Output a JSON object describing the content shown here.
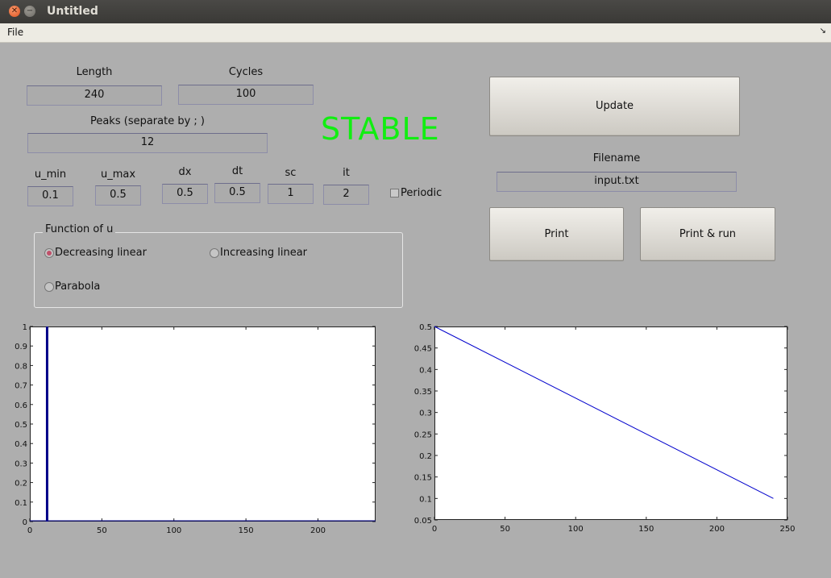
{
  "window": {
    "title": "Untitled",
    "close_glyph": "✕",
    "min_glyph": "−"
  },
  "menu": {
    "file": "File",
    "right_icon": "↘"
  },
  "labels": {
    "length": "Length",
    "cycles": "Cycles",
    "peaks": "Peaks (separate by ; )",
    "u_min": "u_min",
    "u_max": "u_max",
    "dx": "dx",
    "dt": "dt",
    "sc": "sc",
    "it": "it",
    "filename": "Filename"
  },
  "fields": {
    "length": "240",
    "cycles": "100",
    "peaks": "12",
    "u_min": "0.1",
    "u_max": "0.5",
    "dx": "0.5",
    "dt": "0.5",
    "sc": "1",
    "it": "2",
    "filename": "input.txt"
  },
  "status": {
    "text": "STABLE",
    "color": "#11ee11"
  },
  "buttons": {
    "update": "Update",
    "print": "Print",
    "print_run": "Print & run"
  },
  "periodic": {
    "label": "Periodic",
    "checked": false
  },
  "function_group": {
    "title": "Function of u",
    "options": [
      "Decreasing linear",
      "Increasing linear",
      "Parabola"
    ],
    "selected": "Decreasing linear"
  },
  "chart_data": [
    {
      "type": "line",
      "series": [
        {
          "x": [
            12,
            12
          ],
          "y": [
            0,
            1
          ],
          "color": "#000088"
        }
      ],
      "baseline": {
        "x": [
          0,
          240
        ],
        "y": [
          0,
          0
        ],
        "color": "#000088"
      },
      "xlim": [
        0,
        240
      ],
      "ylim": [
        0,
        1
      ],
      "xticks": [
        0,
        50,
        100,
        150,
        200
      ],
      "yticks": [
        0,
        0.1,
        0.2,
        0.3,
        0.4,
        0.5,
        0.6,
        0.7,
        0.8,
        0.9,
        1
      ],
      "xticklabels": [
        "0",
        "50",
        "100",
        "150",
        "200"
      ],
      "yticklabels": [
        "0",
        "0.1",
        "0.2",
        "0.3",
        "0.4",
        "0.5",
        "0.6",
        "0.7",
        "0.8",
        "0.9",
        "1"
      ]
    },
    {
      "type": "line",
      "series": [
        {
          "x": [
            0,
            240
          ],
          "y": [
            0.5,
            0.1
          ],
          "color": "#0000cc"
        }
      ],
      "xlim": [
        0,
        250
      ],
      "ylim": [
        0.05,
        0.5
      ],
      "xticks": [
        0,
        50,
        100,
        150,
        200,
        250
      ],
      "yticks": [
        0.05,
        0.1,
        0.15,
        0.2,
        0.25,
        0.3,
        0.35,
        0.4,
        0.45,
        0.5
      ],
      "xticklabels": [
        "0",
        "50",
        "100",
        "150",
        "200",
        "250"
      ],
      "yticklabels": [
        "0.05",
        "0.1",
        "0.15",
        "0.2",
        "0.25",
        "0.3",
        "0.35",
        "0.4",
        "0.45",
        "0.5"
      ]
    }
  ]
}
